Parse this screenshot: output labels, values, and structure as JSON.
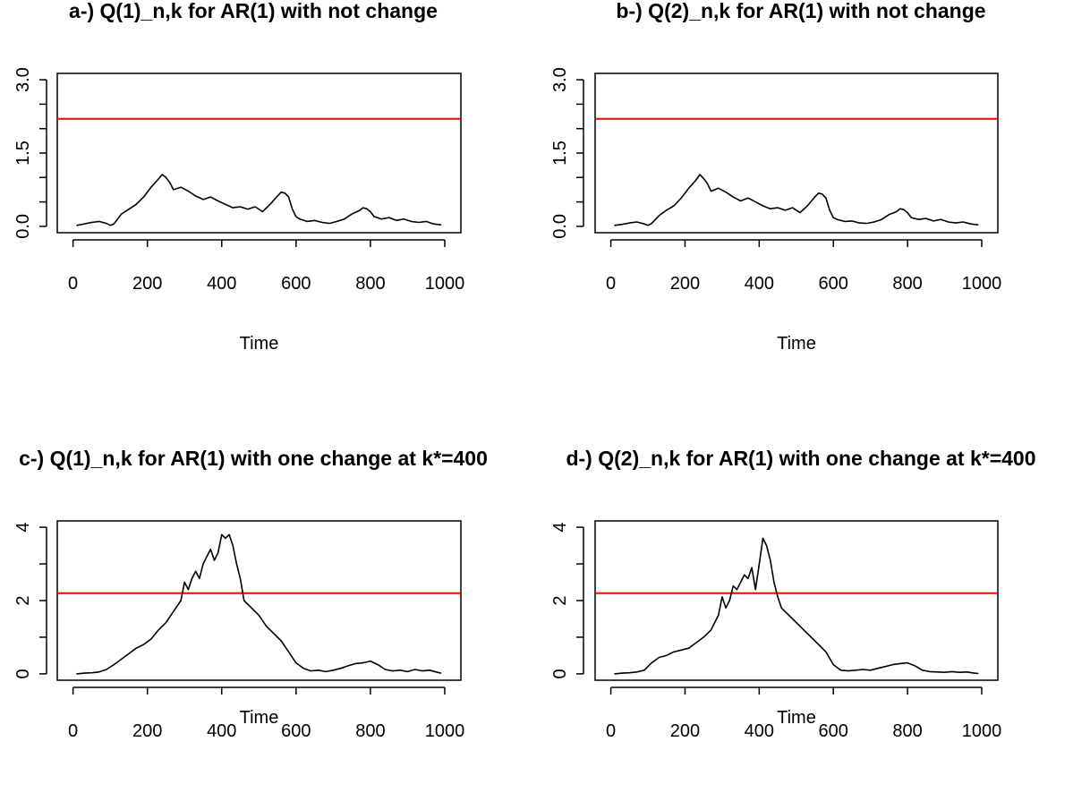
{
  "chart_data": [
    {
      "type": "line",
      "title": "a-) Q(1)_n,k for AR(1) with not change",
      "xlabel": "Time",
      "ylabel": "",
      "xlim": [
        1,
        1000
      ],
      "ylim": [
        0,
        3.0
      ],
      "xticks": [
        0,
        200,
        400,
        600,
        800,
        1000
      ],
      "xtick_labels": [
        "0",
        "200",
        "400",
        "600",
        "800",
        "1000"
      ],
      "yticks": [
        0,
        1.5,
        3.0
      ],
      "ytick_labels": [
        "0.0",
        "1.5",
        "3.0"
      ],
      "ytick_minor": [
        0.5,
        1.0,
        2.0,
        2.5
      ],
      "threshold": 2.2,
      "threshold_color": "#ff0000",
      "line_color": "#000000",
      "grid": false,
      "series": [
        {
          "x": [
            10,
            30,
            50,
            70,
            90,
            100,
            110,
            130,
            150,
            170,
            190,
            210,
            230,
            240,
            250,
            260,
            270,
            290,
            310,
            330,
            350,
            370,
            390,
            410,
            430,
            450,
            470,
            490,
            510,
            530,
            550,
            560,
            570,
            580,
            590,
            600,
            610,
            630,
            650,
            670,
            690,
            710,
            730,
            750,
            770,
            780,
            790,
            800,
            810,
            830,
            850,
            870,
            890,
            910,
            930,
            950,
            970,
            990
          ],
          "y": [
            0.02,
            0.05,
            0.08,
            0.1,
            0.06,
            0.02,
            0.05,
            0.25,
            0.35,
            0.45,
            0.6,
            0.8,
            0.97,
            1.06,
            1.0,
            0.9,
            0.75,
            0.8,
            0.72,
            0.62,
            0.55,
            0.6,
            0.52,
            0.45,
            0.38,
            0.4,
            0.35,
            0.4,
            0.3,
            0.45,
            0.62,
            0.7,
            0.68,
            0.6,
            0.35,
            0.2,
            0.15,
            0.1,
            0.12,
            0.08,
            0.06,
            0.1,
            0.15,
            0.25,
            0.32,
            0.38,
            0.36,
            0.3,
            0.2,
            0.15,
            0.18,
            0.12,
            0.15,
            0.1,
            0.08,
            0.1,
            0.05,
            0.03
          ]
        }
      ]
    },
    {
      "type": "line",
      "title": "b-) Q(2)_n,k for AR(1) with not change",
      "xlabel": "Time",
      "ylabel": "",
      "xlim": [
        1,
        1000
      ],
      "ylim": [
        0,
        3.0
      ],
      "xticks": [
        0,
        200,
        400,
        600,
        800,
        1000
      ],
      "xtick_labels": [
        "0",
        "200",
        "400",
        "600",
        "800",
        "1000"
      ],
      "yticks": [
        0,
        1.5,
        3.0
      ],
      "ytick_labels": [
        "0.0",
        "1.5",
        "3.0"
      ],
      "ytick_minor": [
        0.5,
        1.0,
        2.0,
        2.5
      ],
      "threshold": 2.2,
      "threshold_color": "#ff0000",
      "line_color": "#000000",
      "grid": false,
      "series": [
        {
          "x": [
            10,
            30,
            50,
            70,
            90,
            100,
            110,
            130,
            150,
            170,
            190,
            210,
            230,
            240,
            250,
            260,
            270,
            290,
            310,
            330,
            350,
            370,
            390,
            410,
            430,
            450,
            470,
            490,
            510,
            530,
            550,
            560,
            570,
            580,
            590,
            600,
            610,
            630,
            650,
            670,
            690,
            710,
            730,
            750,
            770,
            780,
            790,
            800,
            810,
            830,
            850,
            870,
            890,
            910,
            930,
            950,
            970,
            990
          ],
          "y": [
            0.02,
            0.04,
            0.07,
            0.09,
            0.05,
            0.02,
            0.06,
            0.22,
            0.33,
            0.42,
            0.58,
            0.78,
            0.95,
            1.06,
            0.98,
            0.88,
            0.72,
            0.78,
            0.7,
            0.6,
            0.52,
            0.58,
            0.5,
            0.42,
            0.36,
            0.38,
            0.33,
            0.38,
            0.28,
            0.42,
            0.6,
            0.68,
            0.66,
            0.58,
            0.33,
            0.18,
            0.14,
            0.1,
            0.11,
            0.07,
            0.06,
            0.09,
            0.14,
            0.24,
            0.3,
            0.36,
            0.34,
            0.28,
            0.18,
            0.14,
            0.16,
            0.11,
            0.14,
            0.09,
            0.07,
            0.09,
            0.05,
            0.03
          ]
        }
      ]
    },
    {
      "type": "line",
      "title": "c-) Q(1)_n,k for AR(1) with one change at k*=400",
      "xlabel": "Time",
      "ylabel": "",
      "xlim": [
        1,
        1000
      ],
      "ylim": [
        0,
        4
      ],
      "xticks": [
        0,
        200,
        400,
        600,
        800,
        1000
      ],
      "xtick_labels": [
        "0",
        "200",
        "400",
        "600",
        "800",
        "1000"
      ],
      "yticks": [
        0,
        2,
        4
      ],
      "ytick_labels": [
        "0",
        "2",
        "4"
      ],
      "ytick_minor": [
        1,
        3
      ],
      "threshold": 2.2,
      "threshold_color": "#ff0000",
      "line_color": "#000000",
      "grid": false,
      "series": [
        {
          "x": [
            10,
            30,
            50,
            70,
            90,
            110,
            130,
            150,
            170,
            190,
            210,
            230,
            250,
            270,
            290,
            300,
            310,
            320,
            330,
            340,
            350,
            360,
            370,
            380,
            390,
            400,
            410,
            420,
            430,
            440,
            450,
            460,
            480,
            500,
            520,
            540,
            560,
            580,
            600,
            620,
            640,
            660,
            680,
            700,
            720,
            740,
            760,
            780,
            800,
            820,
            840,
            860,
            880,
            900,
            920,
            940,
            960,
            980,
            990
          ],
          "y": [
            0.0,
            0.02,
            0.03,
            0.05,
            0.12,
            0.25,
            0.4,
            0.55,
            0.7,
            0.8,
            0.95,
            1.2,
            1.4,
            1.7,
            2.0,
            2.5,
            2.3,
            2.6,
            2.8,
            2.6,
            3.0,
            3.2,
            3.4,
            3.1,
            3.3,
            3.8,
            3.7,
            3.8,
            3.5,
            3.0,
            2.6,
            2.0,
            1.8,
            1.6,
            1.3,
            1.1,
            0.9,
            0.6,
            0.3,
            0.15,
            0.08,
            0.1,
            0.06,
            0.1,
            0.15,
            0.22,
            0.28,
            0.3,
            0.35,
            0.25,
            0.12,
            0.08,
            0.1,
            0.06,
            0.12,
            0.08,
            0.1,
            0.04,
            0.02
          ]
        }
      ]
    },
    {
      "type": "line",
      "title": "d-) Q(2)_n,k for AR(1) with one change at k*=400",
      "xlabel": "Time",
      "ylabel": "",
      "xlim": [
        1,
        1000
      ],
      "ylim": [
        0,
        4
      ],
      "xticks": [
        0,
        200,
        400,
        600,
        800,
        1000
      ],
      "xtick_labels": [
        "0",
        "200",
        "400",
        "600",
        "800",
        "1000"
      ],
      "yticks": [
        0,
        2,
        4
      ],
      "ytick_labels": [
        "0",
        "2",
        "4"
      ],
      "ytick_minor": [
        1,
        3
      ],
      "threshold": 2.2,
      "threshold_color": "#ff0000",
      "line_color": "#000000",
      "grid": false,
      "series": [
        {
          "x": [
            10,
            30,
            50,
            70,
            90,
            110,
            130,
            150,
            170,
            190,
            210,
            230,
            250,
            270,
            290,
            300,
            310,
            320,
            330,
            340,
            350,
            360,
            370,
            380,
            390,
            400,
            410,
            420,
            430,
            440,
            450,
            460,
            480,
            500,
            520,
            540,
            560,
            580,
            600,
            620,
            640,
            660,
            680,
            700,
            720,
            740,
            760,
            780,
            800,
            820,
            840,
            860,
            880,
            900,
            920,
            940,
            960,
            980,
            990
          ],
          "y": [
            0.0,
            0.02,
            0.03,
            0.05,
            0.1,
            0.3,
            0.45,
            0.5,
            0.6,
            0.65,
            0.7,
            0.85,
            1.0,
            1.2,
            1.6,
            2.1,
            1.8,
            2.0,
            2.4,
            2.3,
            2.5,
            2.7,
            2.6,
            2.9,
            2.3,
            3.0,
            3.7,
            3.5,
            3.1,
            2.5,
            2.1,
            1.8,
            1.6,
            1.4,
            1.2,
            1.0,
            0.8,
            0.6,
            0.25,
            0.1,
            0.08,
            0.1,
            0.12,
            0.1,
            0.15,
            0.2,
            0.25,
            0.28,
            0.3,
            0.22,
            0.1,
            0.06,
            0.05,
            0.04,
            0.06,
            0.04,
            0.05,
            0.02,
            0.01
          ]
        }
      ]
    }
  ]
}
